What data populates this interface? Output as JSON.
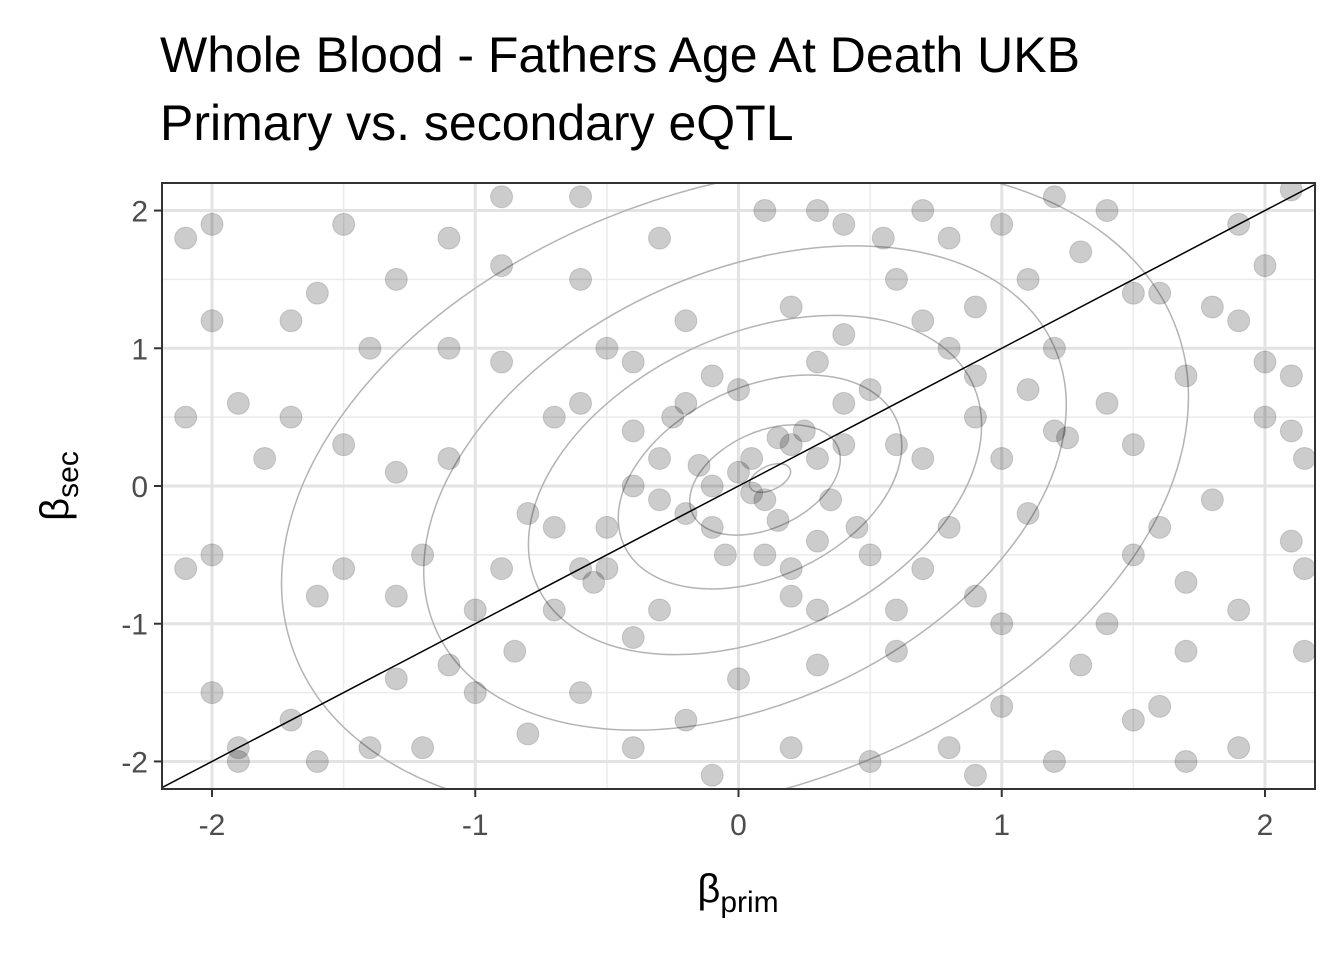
{
  "chart_data": {
    "type": "scatter",
    "title": "Whole Blood - Fathers Age At Death UKB",
    "subtitle": "Primary vs. secondary eQTL",
    "x_label": [
      "β",
      "prim"
    ],
    "y_label": [
      "β",
      "sec"
    ],
    "xlim": [
      -2.19,
      2.19
    ],
    "ylim": [
      -2.2,
      2.2
    ],
    "xticks": [
      -2,
      -1,
      0,
      1,
      2
    ],
    "yticks": [
      -2,
      -1,
      0,
      1,
      2
    ],
    "x_minor_grid": [
      -1.5,
      -0.5,
      0.5,
      1.5
    ],
    "y_minor_grid": [
      -1.5,
      -0.5,
      0.5,
      1.5
    ],
    "grid": true,
    "color": "#000000",
    "x": [
      0,
      0.1,
      -0.1,
      0.2,
      0.25,
      0.15,
      -0.2,
      -0.1,
      0.05,
      0.3,
      -0.3,
      0.35,
      -0.05,
      0.1,
      0.4,
      0.5,
      -0.4,
      -0.5,
      -0.6,
      -0.55,
      0.6,
      0.7,
      0,
      -0.1,
      0.2,
      0.3,
      -0.3,
      -0.4,
      0.45,
      -0.25,
      0.8,
      0.9,
      1,
      1.1,
      1.2,
      1.25,
      0.6,
      0.55,
      0.4,
      0.2,
      -0.2,
      -0.5,
      -0.7,
      -0.8,
      -0.9,
      -0.85,
      -1,
      -1.1,
      -0.6,
      -0.2,
      0,
      0.3,
      0.6,
      0.9,
      1,
      0.7,
      -0.6,
      -0.9,
      -1.1,
      -0.3,
      0.1,
      0.8,
      1,
      1.3,
      1.5,
      1.6,
      1.4,
      1.5,
      1.5,
      1.6,
      1.4,
      1.3,
      1,
      0.8,
      0.5,
      0.2,
      -0.1,
      -0.4,
      -0.8,
      -1.2,
      -1.4,
      -1.7,
      -1.3,
      -1.5,
      -1.6,
      -1.3,
      -1.2,
      -1.1,
      -1.3,
      -1.5,
      -1.8,
      -1.7,
      -1.4,
      -1.3,
      -1.6,
      -1.7,
      -2,
      -2.1,
      -1.9,
      -2,
      -2.1,
      -2,
      -1.9,
      -1.9,
      -1.6,
      -2.1,
      -2,
      -1.5,
      -1.1,
      -0.9,
      -0.6,
      0.3,
      0.7,
      1.1,
      1.2,
      1.7,
      2,
      2.1,
      2,
      2.1,
      2.15,
      1.8,
      2.1,
      2.15,
      1.9,
      1.7,
      1.7,
      2.15,
      1.6,
      1.5,
      1.9,
      1.7,
      1.2,
      0.9,
      1.9,
      2.1,
      1.8,
      1.9,
      2,
      1.4,
      1.2,
      0.9,
      0.3,
      -0.2,
      -0.4,
      -0.7,
      0.5,
      0.8,
      0.9,
      -0.5,
      -0.3,
      0.15,
      -0.15,
      0.05,
      0.6,
      -1,
      -0.9,
      -0.4,
      0.4,
      0.7,
      1.1,
      -0.6,
      -0.7,
      0.2,
      0.4,
      0.3
    ],
    "y": [
      0.1,
      -0.1,
      0,
      0.3,
      0.4,
      0.35,
      -0.2,
      -0.3,
      0.2,
      0.2,
      -0.1,
      -0.1,
      -0.5,
      -0.5,
      0.6,
      0.7,
      0.4,
      -0.6,
      -0.6,
      -0.7,
      0.3,
      0.2,
      0.7,
      0.8,
      -0.8,
      -0.9,
      -0.9,
      -1.1,
      -0.3,
      0.5,
      1,
      0.5,
      0.2,
      -0.2,
      0.4,
      0.35,
      1.5,
      1.8,
      1.9,
      1.3,
      1.2,
      1,
      0.5,
      -0.2,
      -0.6,
      -1.2,
      -1.5,
      -1.3,
      -1.5,
      -1.7,
      -1.4,
      -1.3,
      -1.2,
      -0.8,
      -1,
      -0.6,
      1.5,
      1.6,
      1.8,
      1.8,
      2,
      1.8,
      1.9,
      1.7,
      1.4,
      1.4,
      0.6,
      0.3,
      -0.5,
      -0.3,
      -1,
      -1.3,
      -1.6,
      -1.9,
      -2,
      -1.9,
      -2.1,
      -1.9,
      -1.8,
      -1.9,
      -1.9,
      -1.7,
      -1.4,
      -0.6,
      -0.8,
      -0.8,
      -0.5,
      0.2,
      0.1,
      0.3,
      0.2,
      0.5,
      1,
      1.5,
      1.4,
      1.2,
      1.9,
      1.8,
      0.6,
      -0.5,
      -0.6,
      -1.5,
      -1.9,
      -2,
      -2,
      0.5,
      1.2,
      1.9,
      1,
      2.1,
      2.1,
      2,
      2,
      1.5,
      1,
      0.8,
      0.9,
      0.8,
      0.5,
      0.4,
      0.2,
      -0.1,
      -0.4,
      -0.6,
      -0.9,
      -0.7,
      -1.2,
      -1.2,
      -1.6,
      -1.7,
      -1.9,
      -2,
      -2,
      -2.1,
      1.9,
      2.15,
      1.3,
      1.2,
      1.6,
      2,
      2.1,
      1.3,
      0.9,
      0.6,
      0,
      -0.3,
      -0.5,
      -0.3,
      0.8,
      -0.3,
      0.2,
      -0.25,
      0.15,
      -0.05,
      -0.9,
      -0.9,
      0.9,
      0.9,
      1.1,
      1.2,
      0.7,
      0.6,
      -0.9,
      -0.6,
      0.3,
      -0.4
    ]
  }
}
